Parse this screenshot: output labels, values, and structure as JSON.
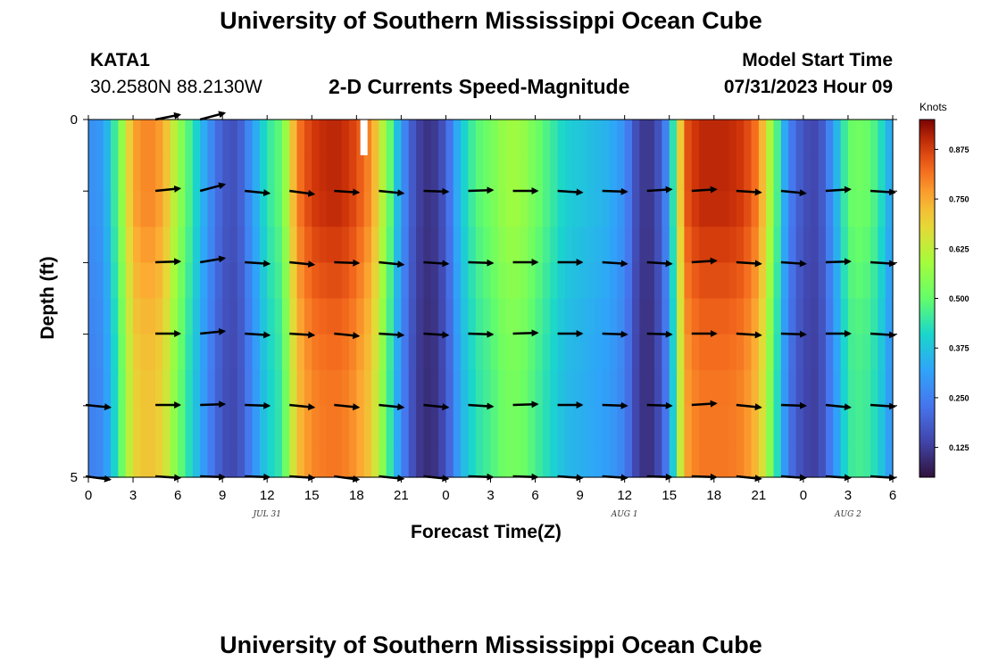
{
  "header": {
    "title": "University of Southern Mississippi Ocean Cube",
    "station_id": "KATA1",
    "station_coords": "30.2580N  88.2130W",
    "subtitle": "2-D Currents Speed-Magnitude",
    "model_label": "Model Start Time",
    "model_time": "07/31/2023 Hour 09"
  },
  "footer": {
    "title": "University of Southern Mississippi Ocean Cube"
  },
  "colors": {
    "arrow": "#000000",
    "missing_top": "#ffffff",
    "missing_bottom": "#000000"
  },
  "chart_data": {
    "type": "heatmap",
    "title": "2-D Currents Speed-Magnitude",
    "xlabel": "Forecast Time(Z)",
    "ylabel": "Depth (ft)",
    "x_ticks": [
      "0",
      "3",
      "6",
      "9",
      "12",
      "15",
      "18",
      "21",
      "0",
      "3",
      "6",
      "9",
      "12",
      "15",
      "18",
      "21",
      "0",
      "3",
      "6"
    ],
    "y_ticks": [
      "0",
      "5"
    ],
    "ylim": [
      0,
      5
    ],
    "date_labels": [
      {
        "label": "JUL 31",
        "hour": 24
      },
      {
        "label": "AUG 1",
        "hour": 72
      },
      {
        "label": "AUG 2",
        "hour": 102
      }
    ],
    "colorbar": {
      "title": "Knots",
      "min": 0.05,
      "max": 0.95,
      "ticks": [
        "0.875",
        "0.750",
        "0.625",
        "0.500",
        "0.375",
        "0.250",
        "0.125"
      ],
      "tick_values": [
        0.875,
        0.75,
        0.625,
        0.5,
        0.375,
        0.25,
        0.125
      ]
    },
    "speed_profile_hours": [
      0,
      3,
      4,
      5,
      6,
      7,
      8,
      9,
      10,
      11,
      12,
      13,
      14,
      15,
      16,
      17,
      18,
      19,
      20,
      21,
      22,
      23,
      24,
      25,
      26,
      27,
      28,
      29,
      30,
      31,
      32,
      33,
      34,
      35,
      36,
      37,
      38,
      39,
      40,
      41,
      42,
      43,
      44,
      45,
      46,
      47,
      48,
      49,
      50,
      51,
      52,
      53,
      54,
      55,
      56,
      57,
      58,
      59,
      60,
      61,
      62,
      63,
      64,
      65,
      66,
      67,
      68,
      69,
      70,
      71,
      72,
      73,
      74,
      75,
      76,
      77,
      78,
      79,
      80,
      81,
      82,
      83,
      84,
      85,
      86,
      87,
      88,
      89,
      90,
      91,
      92,
      93,
      94,
      95,
      96,
      97,
      98,
      99,
      100,
      101,
      102,
      103,
      104,
      105,
      106,
      107,
      108,
      109,
      110,
      111,
      112,
      113,
      114,
      115,
      116,
      117,
      118,
      119,
      120,
      121,
      122,
      123,
      124,
      125,
      126,
      127,
      128,
      129,
      130,
      131,
      132,
      133,
      134,
      135,
      136,
      137,
      138,
      139,
      140,
      141,
      142,
      143,
      144,
      145,
      146,
      147,
      148,
      149,
      150,
      151,
      152,
      153,
      154,
      155,
      156,
      157,
      158,
      159,
      160,
      161,
      162,
      163,
      164,
      165,
      166,
      167,
      168,
      169,
      170,
      171,
      172,
      173,
      174,
      175,
      176,
      177,
      178,
      179,
      180,
      181,
      182,
      183,
      184,
      185,
      186,
      187,
      188,
      189,
      190,
      191,
      192,
      193,
      194,
      195,
      196,
      197,
      198,
      199,
      200
    ],
    "speed_profile": [
      0.28,
      0.3,
      0.5,
      0.76,
      0.8,
      0.76,
      0.58,
      0.44,
      0.3,
      0.18,
      0.16,
      0.3,
      0.44,
      0.5,
      0.8,
      0.88,
      0.9,
      0.9,
      0.86,
      0.78,
      0.56,
      0.3,
      0.14,
      0.1,
      0.18,
      0.38,
      0.48,
      0.52,
      0.58,
      0.58,
      0.52,
      0.46,
      0.4,
      0.38,
      0.36,
      0.34,
      0.28,
      0.12,
      0.12,
      0.3,
      0.84,
      0.9,
      0.9,
      0.9,
      0.88,
      0.8,
      0.54,
      0.26,
      0.16,
      0.14,
      0.3,
      0.5,
      0.52,
      0.46,
      0.3
    ],
    "depth_factors": [
      1.0,
      1.0,
      0.96,
      0.92,
      0.9,
      0.9
    ],
    "depth_rows": [
      "0",
      "1",
      "2",
      "3",
      "4",
      "5"
    ],
    "missing_data": [
      {
        "hour": 18.5,
        "depth_from": 0.0,
        "depth_to": 0.5,
        "color": "white"
      },
      {
        "hour": 63.0,
        "depth_from": 4.5,
        "depth_to": 5.0,
        "color": "black"
      }
    ],
    "vector_hours": [
      1.5,
      6.0,
      9.0,
      12.0,
      15.0,
      18.0,
      21.0,
      24.0,
      27.0,
      30.0,
      33.0,
      36.0,
      39.0,
      42.0,
      45.0,
      48.0,
      51.0,
      54.0
    ],
    "vectors": [
      [
        null,
        [
          3,
          -0.6
        ],
        [
          3,
          -0.8
        ],
        null,
        null,
        null,
        null,
        null,
        null,
        null,
        null,
        null,
        null,
        null,
        null,
        null,
        null,
        null
      ],
      [
        [
          0,
          0
        ],
        [
          3,
          -0.3
        ],
        [
          3,
          -0.8
        ],
        [
          3,
          0.3
        ],
        [
          3,
          0.4
        ],
        [
          3,
          0.2
        ],
        [
          3,
          0.3
        ],
        [
          3,
          0.1
        ],
        [
          3,
          -0.1
        ],
        [
          3,
          0
        ],
        [
          3,
          0.2
        ],
        [
          3,
          0.1
        ],
        [
          3,
          -0.2
        ],
        [
          3,
          -0.2
        ],
        [
          3,
          0.2
        ],
        [
          3,
          0.3
        ],
        [
          3,
          -0.2
        ],
        [
          3,
          0.2
        ]
      ],
      [
        [
          0,
          0
        ],
        [
          3,
          -0.1
        ],
        [
          3,
          -0.5
        ],
        [
          3,
          0.2
        ],
        [
          3,
          0.3
        ],
        [
          3,
          0.1
        ],
        [
          3,
          0.3
        ],
        [
          3,
          0.2
        ],
        [
          3,
          0.1
        ],
        [
          3,
          0
        ],
        [
          3,
          0
        ],
        [
          3,
          0.2
        ],
        [
          3,
          0.2
        ],
        [
          3,
          -0.2
        ],
        [
          3,
          0.2
        ],
        [
          3,
          0.2
        ],
        [
          3,
          -0.1
        ],
        [
          3,
          0.2
        ]
      ],
      [
        [
          0,
          0
        ],
        [
          3,
          0
        ],
        [
          3,
          -0.3
        ],
        [
          3,
          0.2
        ],
        [
          3,
          0.2
        ],
        [
          3,
          0.3
        ],
        [
          3,
          0.2
        ],
        [
          3,
          0.2
        ],
        [
          3,
          0.1
        ],
        [
          3,
          -0.1
        ],
        [
          3,
          0
        ],
        [
          3,
          0.1
        ],
        [
          3,
          0.1
        ],
        [
          3,
          0
        ],
        [
          3,
          0.2
        ],
        [
          3,
          0.1
        ],
        [
          3,
          0
        ],
        [
          3,
          0.2
        ]
      ],
      [
        [
          3,
          0.3
        ],
        [
          3,
          0
        ],
        [
          3,
          -0.1
        ],
        [
          3,
          0.1
        ],
        [
          3,
          0.3
        ],
        [
          3,
          0.3
        ],
        [
          3,
          0.3
        ],
        [
          3,
          0.3
        ],
        [
          3,
          0.2
        ],
        [
          3,
          -0.1
        ],
        [
          3,
          0
        ],
        [
          3,
          0.1
        ],
        [
          3,
          0.1
        ],
        [
          3,
          -0.2
        ],
        [
          3,
          0.3
        ],
        [
          3,
          0.1
        ],
        [
          3,
          0.3
        ],
        [
          3,
          0.2
        ]
      ],
      [
        [
          3,
          0.4
        ],
        [
          3,
          0.2
        ],
        [
          3,
          0.1
        ],
        [
          3,
          0.1
        ],
        [
          3,
          0.2
        ],
        [
          3,
          0.4
        ],
        [
          3,
          0.3
        ],
        [
          3,
          0.3
        ],
        [
          3,
          0.1
        ],
        [
          3,
          0.1
        ],
        [
          3,
          0.2
        ],
        [
          3,
          0.2
        ],
        [
          3,
          0.1
        ],
        [
          3,
          0.1
        ],
        [
          3,
          0.3
        ],
        [
          3,
          0.2
        ],
        [
          3,
          0.2
        ],
        [
          3,
          0.2
        ]
      ]
    ]
  }
}
